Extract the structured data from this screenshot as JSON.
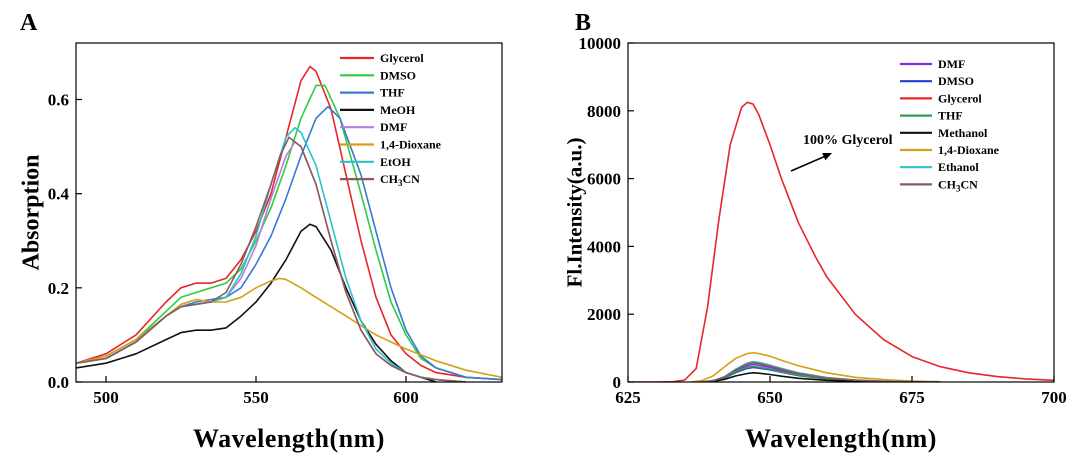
{
  "chart_data": [
    {
      "panel_label": "A",
      "type": "line",
      "xlabel": "Wavelength(nm)",
      "ylabel": "Absorption",
      "xlim": [
        490,
        632
      ],
      "ylim": [
        0.0,
        0.72
      ],
      "xticks": [
        500,
        550,
        600
      ],
      "yticks": [
        0.0,
        0.2,
        0.4,
        0.6
      ],
      "ytick_labels": [
        "0.0",
        "0.2",
        "0.4",
        "0.6"
      ],
      "legend_position": "top-right",
      "grid": false,
      "series": [
        {
          "name": "Glycerol",
          "color": "#e8262a",
          "x": [
            490,
            500,
            510,
            520,
            525,
            530,
            535,
            540,
            545,
            550,
            555,
            560,
            565,
            568,
            570,
            575,
            580,
            585,
            590,
            595,
            600,
            605,
            610,
            620,
            632
          ],
          "y": [
            0.04,
            0.06,
            0.1,
            0.17,
            0.2,
            0.21,
            0.21,
            0.22,
            0.26,
            0.32,
            0.4,
            0.52,
            0.64,
            0.67,
            0.66,
            0.58,
            0.44,
            0.3,
            0.18,
            0.1,
            0.06,
            0.035,
            0.02,
            0.01,
            0.005
          ]
        },
        {
          "name": "DMSO",
          "color": "#2ecc40",
          "x": [
            490,
            500,
            510,
            520,
            525,
            530,
            535,
            540,
            545,
            550,
            555,
            560,
            565,
            570,
            573,
            578,
            585,
            590,
            595,
            600,
            605,
            610,
            620,
            632
          ],
          "y": [
            0.04,
            0.055,
            0.09,
            0.15,
            0.18,
            0.19,
            0.2,
            0.21,
            0.24,
            0.3,
            0.37,
            0.46,
            0.56,
            0.63,
            0.63,
            0.56,
            0.4,
            0.28,
            0.17,
            0.1,
            0.05,
            0.03,
            0.01,
            0.005
          ]
        },
        {
          "name": "THF",
          "color": "#3a78d6",
          "x": [
            490,
            500,
            510,
            520,
            525,
            530,
            535,
            540,
            545,
            550,
            555,
            560,
            565,
            570,
            574,
            578,
            585,
            590,
            595,
            600,
            605,
            610,
            620,
            632
          ],
          "y": [
            0.04,
            0.05,
            0.085,
            0.14,
            0.16,
            0.17,
            0.175,
            0.18,
            0.2,
            0.25,
            0.31,
            0.39,
            0.48,
            0.56,
            0.585,
            0.56,
            0.44,
            0.32,
            0.2,
            0.11,
            0.055,
            0.03,
            0.01,
            0.005
          ]
        },
        {
          "name": "MeOH",
          "color": "#111111",
          "x": [
            490,
            500,
            510,
            520,
            525,
            530,
            535,
            540,
            545,
            550,
            555,
            560,
            565,
            568,
            570,
            575,
            580,
            585,
            590,
            595,
            600,
            605,
            610
          ],
          "y": [
            0.03,
            0.04,
            0.06,
            0.09,
            0.105,
            0.11,
            0.11,
            0.115,
            0.14,
            0.17,
            0.21,
            0.26,
            0.32,
            0.335,
            0.33,
            0.28,
            0.2,
            0.13,
            0.08,
            0.045,
            0.02,
            0.01,
            0.0
          ]
        },
        {
          "name": "DMF",
          "color": "#b87cdc",
          "x": [
            490,
            500,
            510,
            520,
            525,
            530,
            535,
            540,
            545,
            550,
            555,
            560,
            563,
            565,
            570,
            575,
            580,
            585,
            590,
            595,
            600,
            605,
            610,
            620
          ],
          "y": [
            0.04,
            0.05,
            0.085,
            0.14,
            0.16,
            0.165,
            0.17,
            0.18,
            0.22,
            0.29,
            0.39,
            0.48,
            0.51,
            0.5,
            0.42,
            0.3,
            0.19,
            0.11,
            0.06,
            0.035,
            0.02,
            0.01,
            0.005,
            0.0
          ]
        },
        {
          "name": "1,4-Dioxane",
          "color": "#d4a017",
          "x": [
            490,
            500,
            510,
            520,
            525,
            530,
            535,
            540,
            545,
            550,
            555,
            558,
            560,
            565,
            570,
            575,
            580,
            590,
            600,
            610,
            620,
            632
          ],
          "y": [
            0.04,
            0.055,
            0.09,
            0.14,
            0.165,
            0.175,
            0.17,
            0.17,
            0.18,
            0.2,
            0.215,
            0.22,
            0.218,
            0.2,
            0.18,
            0.16,
            0.14,
            0.1,
            0.07,
            0.045,
            0.025,
            0.01
          ]
        },
        {
          "name": "EtOH",
          "color": "#2bc3cc",
          "x": [
            490,
            500,
            510,
            520,
            525,
            530,
            535,
            540,
            545,
            550,
            555,
            560,
            563,
            565,
            570,
            575,
            580,
            585,
            590,
            595,
            600,
            605,
            610,
            620
          ],
          "y": [
            0.04,
            0.05,
            0.085,
            0.14,
            0.16,
            0.165,
            0.17,
            0.18,
            0.23,
            0.31,
            0.42,
            0.52,
            0.54,
            0.53,
            0.46,
            0.34,
            0.22,
            0.13,
            0.07,
            0.04,
            0.02,
            0.01,
            0.005,
            0.0
          ]
        },
        {
          "name": "CH3CN",
          "label_main": "CH",
          "label_sub": "3",
          "label_tail": "CN",
          "color": "#8b5a5a",
          "x": [
            490,
            500,
            510,
            520,
            525,
            530,
            535,
            540,
            545,
            550,
            555,
            558,
            561,
            565,
            570,
            575,
            580,
            585,
            590,
            595,
            600,
            605,
            610,
            620
          ],
          "y": [
            0.04,
            0.05,
            0.085,
            0.14,
            0.16,
            0.165,
            0.17,
            0.19,
            0.25,
            0.33,
            0.42,
            0.48,
            0.52,
            0.5,
            0.42,
            0.3,
            0.19,
            0.11,
            0.06,
            0.035,
            0.02,
            0.01,
            0.005,
            0.0
          ]
        }
      ]
    },
    {
      "panel_label": "B",
      "type": "line",
      "xlabel": "Wavelength(nm)",
      "ylabel": "Fl.Intensity(a.u.)",
      "xlim": [
        625,
        700
      ],
      "ylim": [
        0,
        10000
      ],
      "xticks": [
        625,
        650,
        675,
        700
      ],
      "yticks": [
        0,
        2000,
        4000,
        6000,
        8000,
        10000
      ],
      "legend_position": "top-right",
      "grid": false,
      "annotation": "100% Glycerol",
      "series": [
        {
          "name": "DMF",
          "color": "#8a2be2",
          "x": [
            638,
            640,
            642,
            644,
            646,
            647,
            648,
            650,
            652,
            655,
            660,
            665,
            670,
            680
          ],
          "y": [
            0,
            40,
            150,
            330,
            480,
            520,
            500,
            430,
            340,
            230,
            110,
            50,
            20,
            0
          ]
        },
        {
          "name": "DMSO",
          "color": "#1f3fd6",
          "x": [
            638,
            640,
            642,
            644,
            646,
            647,
            648,
            650,
            652,
            655,
            660,
            665,
            670,
            680
          ],
          "y": [
            0,
            30,
            120,
            280,
            400,
            430,
            410,
            360,
            290,
            190,
            90,
            40,
            15,
            0
          ]
        },
        {
          "name": "Glycerol",
          "color": "#e8262a",
          "x": [
            625,
            630,
            633,
            635,
            637,
            639,
            641,
            643,
            645,
            646,
            647,
            648,
            650,
            652,
            655,
            658,
            660,
            665,
            670,
            675,
            680,
            685,
            690,
            695,
            700
          ],
          "y": [
            0,
            0,
            10,
            60,
            400,
            2200,
            4800,
            7000,
            8100,
            8250,
            8200,
            7900,
            7000,
            6000,
            4700,
            3700,
            3100,
            2000,
            1250,
            750,
            450,
            270,
            160,
            90,
            50
          ]
        },
        {
          "name": "THF",
          "color": "#2e9a5e",
          "x": [
            638,
            640,
            642,
            644,
            646,
            647,
            648,
            650,
            652,
            655,
            660,
            665,
            670,
            680
          ],
          "y": [
            0,
            35,
            130,
            300,
            430,
            460,
            440,
            380,
            300,
            200,
            95,
            45,
            18,
            0
          ]
        },
        {
          "name": "Methanol",
          "color": "#111111",
          "x": [
            638,
            640,
            642,
            644,
            646,
            647,
            648,
            650,
            652,
            655,
            660,
            665,
            670
          ],
          "y": [
            0,
            20,
            80,
            180,
            250,
            270,
            260,
            220,
            170,
            110,
            50,
            20,
            5
          ]
        },
        {
          "name": "1,4-Dioxane",
          "color": "#d4a017",
          "x": [
            636,
            638,
            640,
            642,
            644,
            646,
            647,
            648,
            650,
            652,
            655,
            660,
            665,
            670,
            675,
            680
          ],
          "y": [
            0,
            40,
            180,
            450,
            700,
            840,
            860,
            840,
            760,
            640,
            480,
            270,
            140,
            70,
            30,
            10
          ]
        },
        {
          "name": "Ethanol",
          "color": "#2bc3cc",
          "x": [
            638,
            640,
            642,
            644,
            646,
            647,
            648,
            650,
            652,
            655,
            660,
            665,
            670,
            680
          ],
          "y": [
            0,
            40,
            160,
            380,
            560,
            600,
            580,
            500,
            400,
            270,
            130,
            60,
            25,
            0
          ]
        },
        {
          "name": "CH3CN",
          "label_main": "CH",
          "label_sub": "3",
          "label_tail": "CN",
          "color": "#8b5a5a",
          "x": [
            638,
            640,
            642,
            644,
            646,
            647,
            648,
            650,
            652,
            655,
            660,
            665,
            670,
            680
          ],
          "y": [
            0,
            38,
            150,
            360,
            530,
            570,
            550,
            470,
            380,
            255,
            120,
            55,
            22,
            0
          ]
        }
      ]
    }
  ]
}
